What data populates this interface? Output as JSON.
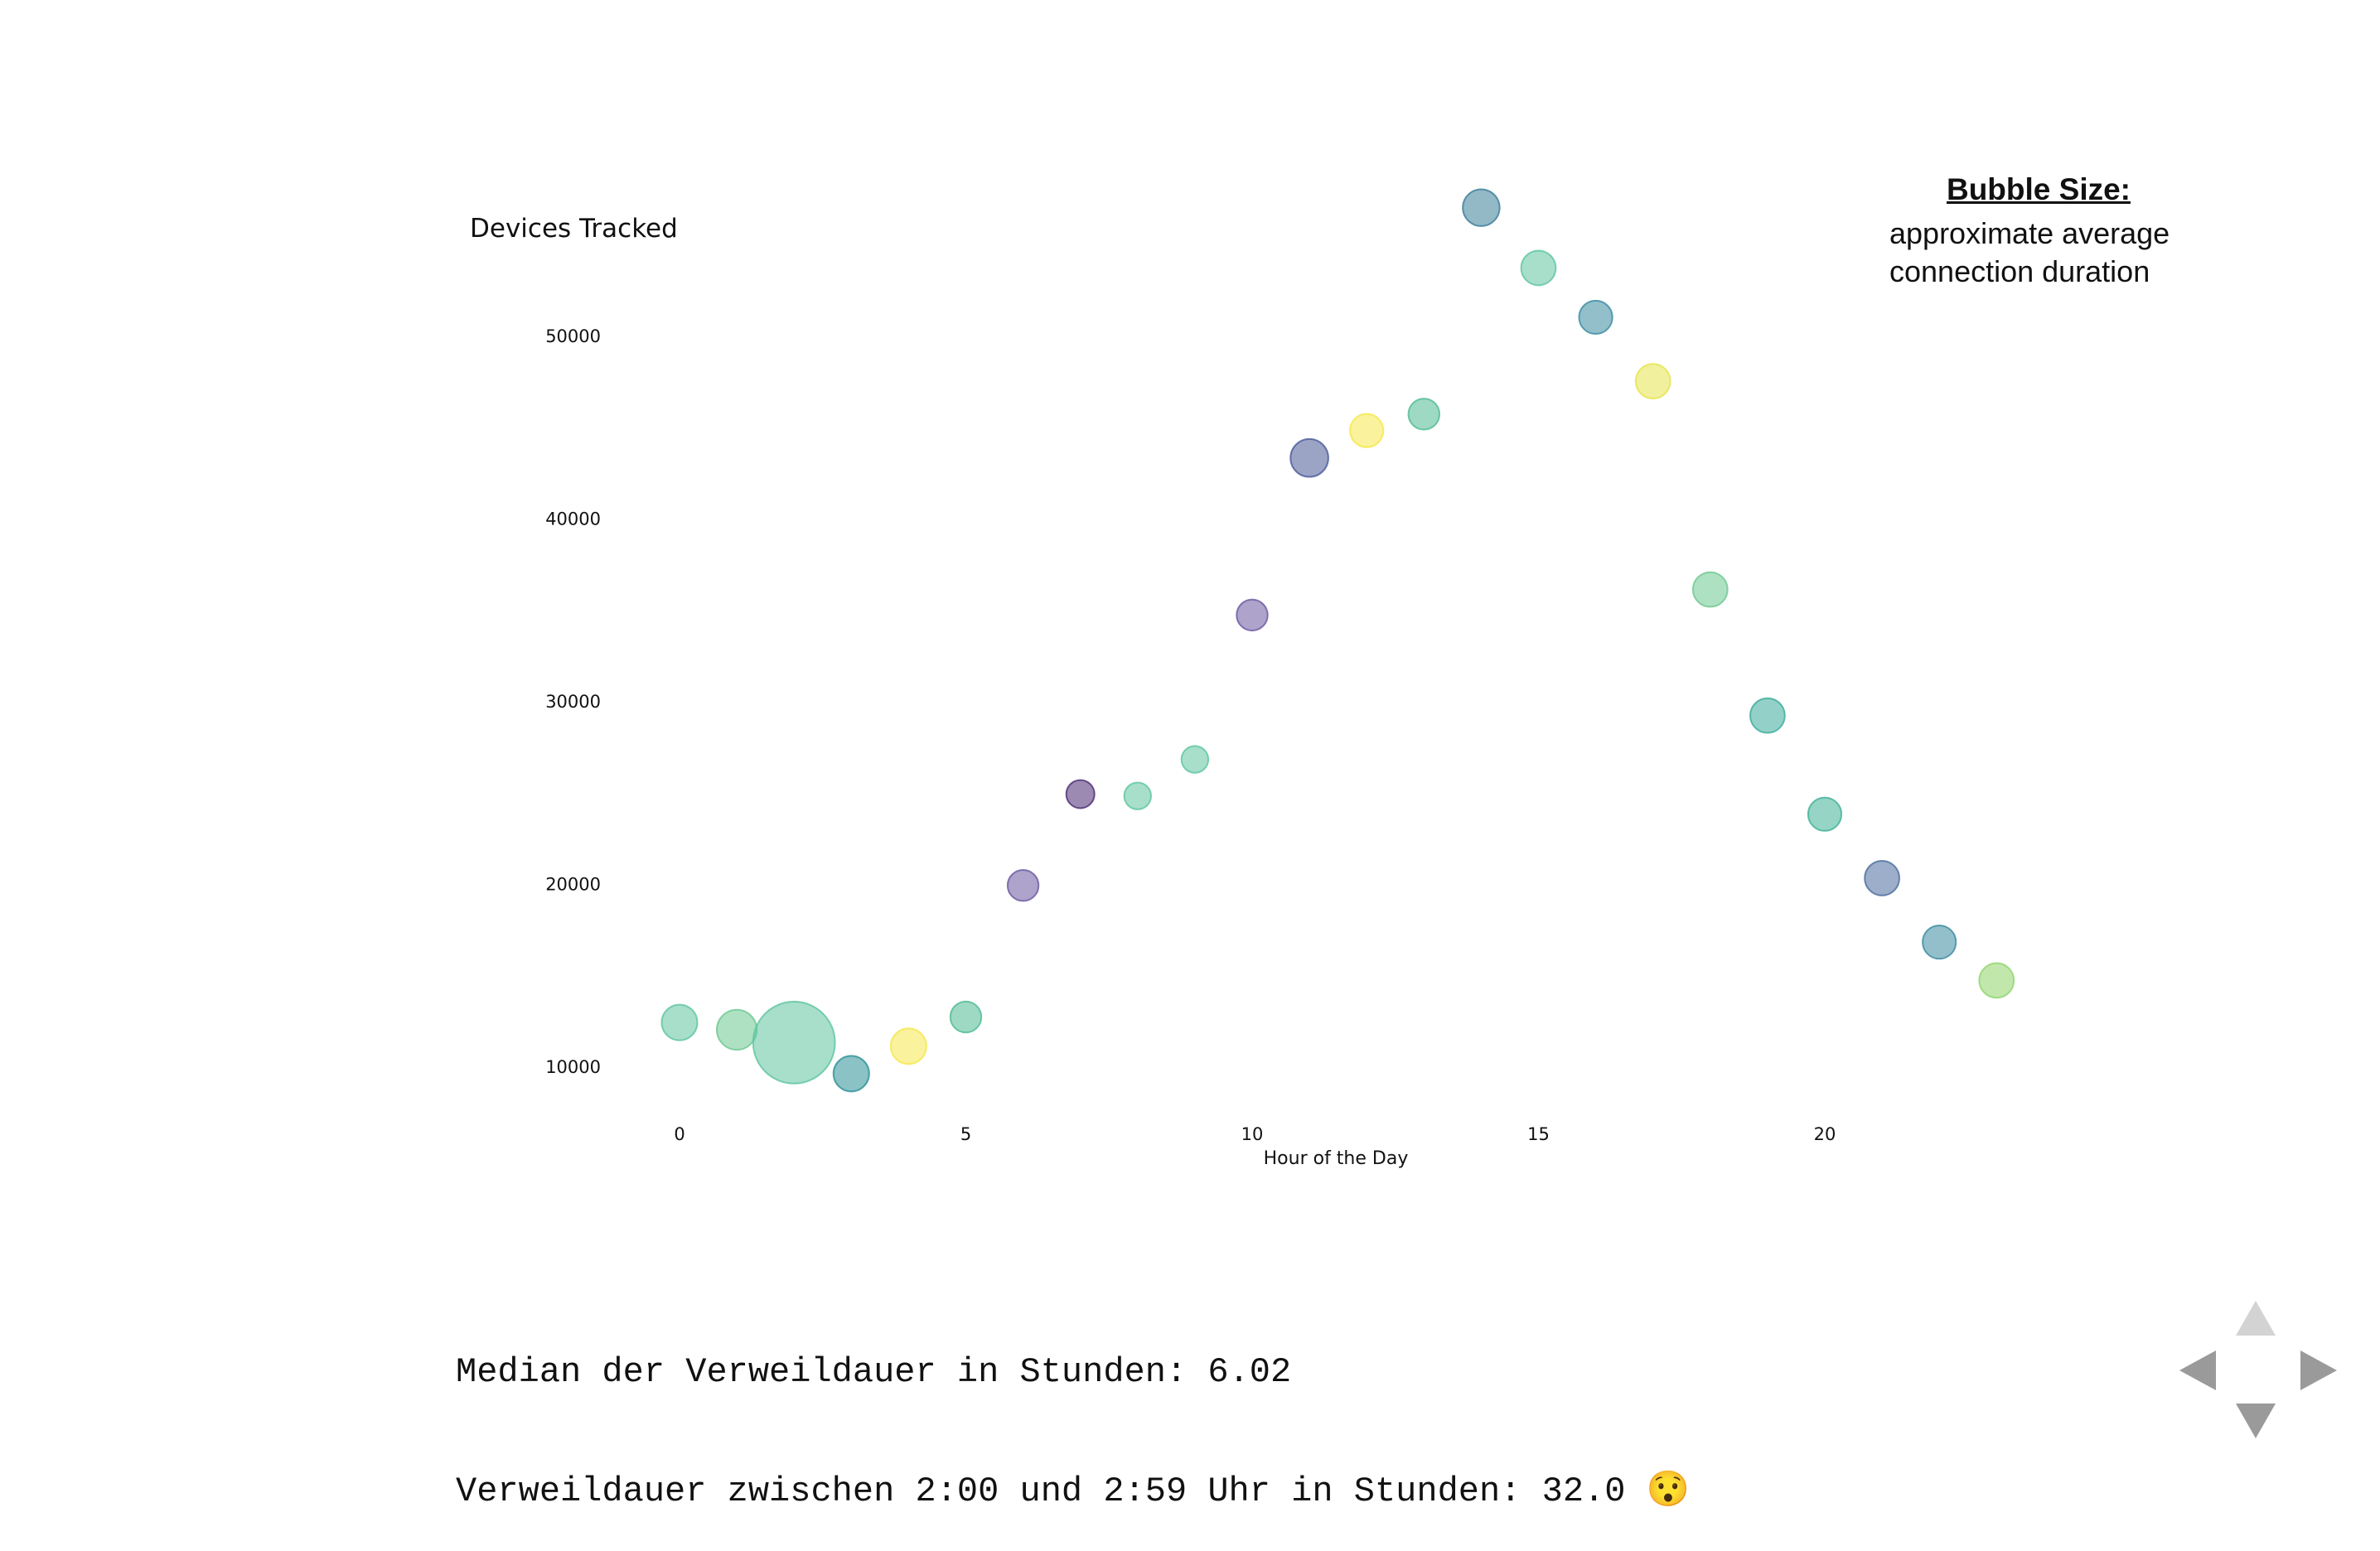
{
  "chart_data": {
    "type": "scatter",
    "title": "",
    "xlabel": "Hour of the Day",
    "ylabel": "Devices Tracked",
    "xticks": [
      0,
      5,
      10,
      15,
      20
    ],
    "yticks": [
      10000,
      20000,
      30000,
      40000,
      50000
    ],
    "xlim": [
      -1.5,
      25.5
    ],
    "ylim": [
      7500,
      58000
    ],
    "grid": false,
    "points": [
      {
        "x": 0,
        "y": 12400,
        "size": 0.8,
        "color": "#5ec4a0"
      },
      {
        "x": 1,
        "y": 12000,
        "size": 1.0,
        "color": "#6cc88f"
      },
      {
        "x": 2,
        "y": 11300,
        "size": 4.2,
        "color": "#5ec4a0"
      },
      {
        "x": 3,
        "y": 9600,
        "size": 0.8,
        "color": "#2a8f98"
      },
      {
        "x": 4,
        "y": 11100,
        "size": 0.8,
        "color": "#f5e74a"
      },
      {
        "x": 5,
        "y": 12700,
        "size": 0.6,
        "color": "#4fba92"
      },
      {
        "x": 6,
        "y": 19900,
        "size": 0.6,
        "color": "#6a58a0"
      },
      {
        "x": 7,
        "y": 24900,
        "size": 0.5,
        "color": "#4b2a72"
      },
      {
        "x": 8,
        "y": 24800,
        "size": 0.45,
        "color": "#5ec4a0"
      },
      {
        "x": 9,
        "y": 26800,
        "size": 0.45,
        "color": "#5ec4a0"
      },
      {
        "x": 10,
        "y": 34700,
        "size": 0.6,
        "color": "#6a58a0"
      },
      {
        "x": 11,
        "y": 43300,
        "size": 0.9,
        "color": "#4a5a98"
      },
      {
        "x": 12,
        "y": 44800,
        "size": 0.7,
        "color": "#f5e74a"
      },
      {
        "x": 13,
        "y": 45700,
        "size": 0.6,
        "color": "#4fba92"
      },
      {
        "x": 14,
        "y": 57000,
        "size": 0.85,
        "color": "#3a7d98"
      },
      {
        "x": 15,
        "y": 53700,
        "size": 0.75,
        "color": "#5ec4a0"
      },
      {
        "x": 16,
        "y": 51000,
        "size": 0.7,
        "color": "#3a8ba0"
      },
      {
        "x": 17,
        "y": 47500,
        "size": 0.75,
        "color": "#e6e44a"
      },
      {
        "x": 18,
        "y": 36100,
        "size": 0.75,
        "color": "#6cc88f"
      },
      {
        "x": 19,
        "y": 29200,
        "size": 0.75,
        "color": "#3aab9a"
      },
      {
        "x": 20,
        "y": 23800,
        "size": 0.7,
        "color": "#40b095"
      },
      {
        "x": 21,
        "y": 20300,
        "size": 0.75,
        "color": "#4a6c9c"
      },
      {
        "x": 22,
        "y": 16800,
        "size": 0.7,
        "color": "#3a8ba0"
      },
      {
        "x": 23,
        "y": 14700,
        "size": 0.75,
        "color": "#8fd46a"
      }
    ]
  },
  "legend": {
    "title": "Bubble Size:",
    "text": "approximate average connection duration"
  },
  "output": {
    "line1": "Median der Verweildauer in Stunden: 6.02",
    "line2": "Verweildauer zwischen 2:00 und 2:59 Uhr in Stunden: 32.0 😯"
  },
  "nav": {
    "up_icon": "arrow-up-icon",
    "down_icon": "arrow-down-icon",
    "left_icon": "arrow-left-icon",
    "right_icon": "arrow-right-icon"
  }
}
